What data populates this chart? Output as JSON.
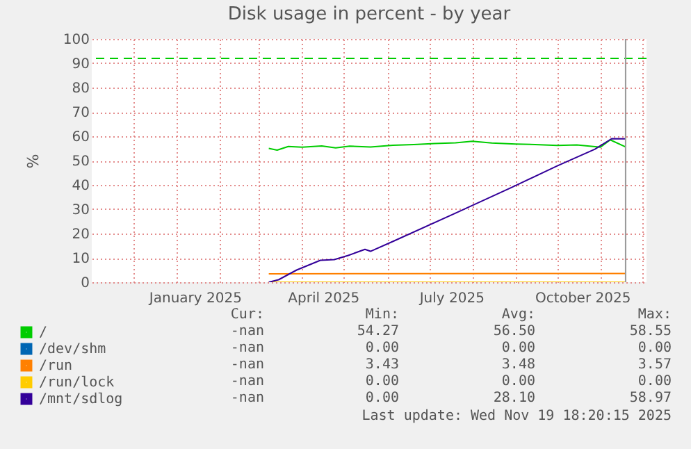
{
  "chart_data": {
    "type": "line",
    "title": "Disk usage in percent - by year",
    "ylabel": "%",
    "xlim": [
      "2024-11-01",
      "2025-12-04"
    ],
    "xticks": [
      {
        "value": "2024-12-01",
        "label": null
      },
      {
        "value": "2025-01-01",
        "label": null
      },
      {
        "value": "2025-01-14",
        "label": "January 2025"
      },
      {
        "value": "2025-02-01",
        "label": null
      },
      {
        "value": "2025-03-01",
        "label": null
      },
      {
        "value": "2025-04-01",
        "label": null
      },
      {
        "value": "2025-04-16",
        "label": "April 2025"
      },
      {
        "value": "2025-05-01",
        "label": null
      },
      {
        "value": "2025-06-01",
        "label": null
      },
      {
        "value": "2025-07-01",
        "label": null
      },
      {
        "value": "2025-07-17",
        "label": "July 2025"
      },
      {
        "value": "2025-08-01",
        "label": null
      },
      {
        "value": "2025-09-01",
        "label": null
      },
      {
        "value": "2025-10-01",
        "label": null
      },
      {
        "value": "2025-10-19",
        "label": "October 2025"
      },
      {
        "value": "2025-11-01",
        "label": null
      },
      {
        "value": "2025-12-01",
        "label": null
      }
    ],
    "ylim": [
      0,
      100
    ],
    "yticks": [
      0,
      10,
      20,
      30,
      40,
      50,
      60,
      70,
      80,
      90,
      100
    ],
    "grid": true,
    "legend": "bottom",
    "line_style": "solid",
    "series": [
      {
        "name": "/",
        "color": "#00cc00",
        "x": [
          "2025-03-08",
          "2025-03-14",
          "2025-03-22",
          "2025-04-01",
          "2025-04-15",
          "2025-04-25",
          "2025-05-05",
          "2025-05-20",
          "2025-06-05",
          "2025-06-20",
          "2025-07-05",
          "2025-07-20",
          "2025-08-01",
          "2025-08-15",
          "2025-09-01",
          "2025-09-15",
          "2025-10-01",
          "2025-10-15",
          "2025-11-01",
          "2025-11-08",
          "2025-11-19"
        ],
        "values": [
          55.0,
          54.3,
          55.8,
          55.5,
          56.0,
          55.2,
          55.9,
          55.6,
          56.3,
          56.6,
          57.0,
          57.3,
          57.9,
          57.2,
          56.8,
          56.6,
          56.2,
          56.4,
          55.5,
          58.5,
          55.6
        ]
      },
      {
        "name": "/dev/shm",
        "color": "#0066b3"
      },
      {
        "name": "/run",
        "color": "#ff8000",
        "x": [
          "2025-03-08",
          "2025-06-01",
          "2025-11-19"
        ],
        "values": [
          3.4,
          3.5,
          3.6
        ]
      },
      {
        "name": "/run/lock",
        "color": "#ffcc00",
        "x": [
          "2025-03-08",
          "2025-11-19"
        ],
        "values": [
          0,
          0
        ]
      },
      {
        "name": "/mnt/sdlog",
        "color": "#330099",
        "x": [
          "2025-03-08",
          "2025-03-15",
          "2025-03-28",
          "2025-04-14",
          "2025-04-24",
          "2025-05-04",
          "2025-05-16",
          "2025-05-20",
          "2025-06-06",
          "2025-07-20",
          "2025-08-29",
          "2025-10-01",
          "2025-10-28",
          "2025-11-09",
          "2025-11-19"
        ],
        "values": [
          0,
          1,
          5,
          9,
          9.3,
          11,
          13.5,
          12.7,
          17,
          28.4,
          38.9,
          47.8,
          54.7,
          59.0,
          58.9
        ]
      }
    ],
    "ref_lines": [
      {
        "axis": "y",
        "value": 92,
        "color": "#00cc00",
        "line_style": "dashed"
      },
      {
        "axis": "x",
        "value": "2025-11-19",
        "color": "#999999",
        "line_style": "solid"
      }
    ],
    "annotations": [
      "Cur:",
      "Min:",
      "Avg:",
      "Max:",
      "-nan",
      "54.27",
      "56.50",
      "58.55",
      "-nan",
      "0.00",
      "0.00",
      "0.00",
      "-nan",
      "3.43",
      "3.48",
      "3.57",
      "-nan",
      "0.00",
      "0.00",
      "0.00",
      "-nan",
      "0.00",
      "28.10",
      "58.97",
      "Last update: Wed Nov 19 18:20:15 2025"
    ]
  }
}
